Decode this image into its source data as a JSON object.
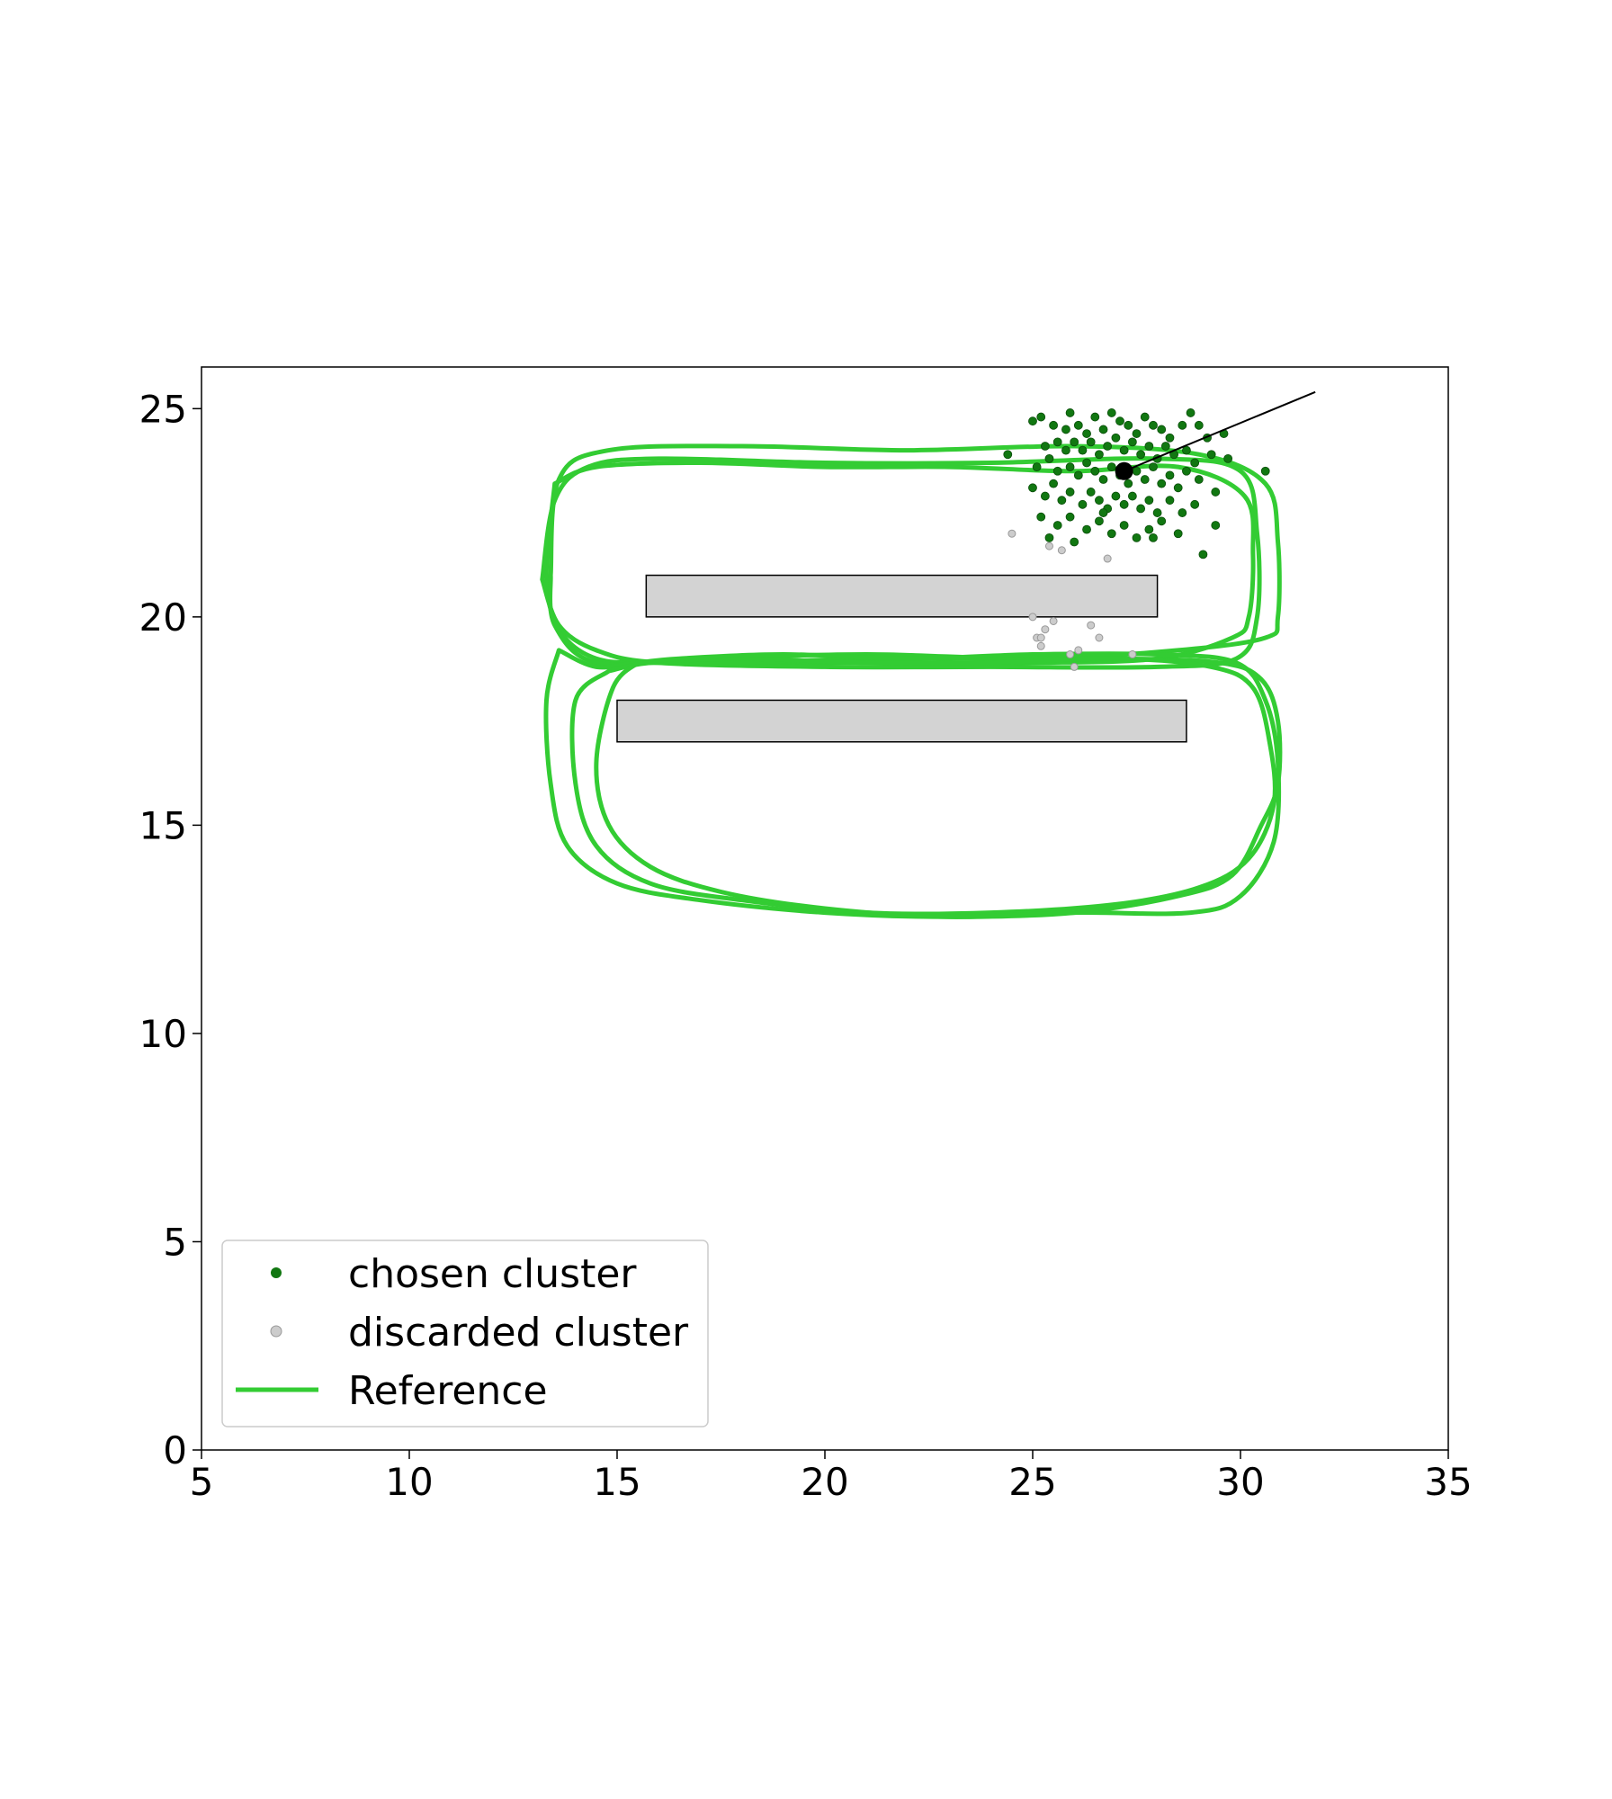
{
  "chart_data": {
    "type": "scatter",
    "title": "",
    "xlabel": "",
    "ylabel": "",
    "xlim": [
      5,
      35
    ],
    "ylim": [
      0,
      26
    ],
    "xticks": [
      "5",
      "10",
      "15",
      "20",
      "25",
      "30",
      "35"
    ],
    "yticks": [
      "0",
      "5",
      "10",
      "15",
      "20",
      "25"
    ],
    "grid": false,
    "legend_position": "bottom-left",
    "legend": {
      "chosen_label": "chosen cluster",
      "discarded_label": "discarded cluster",
      "reference_label": "Reference"
    },
    "colors": {
      "reference": "#33cc33",
      "chosen": "#117711",
      "discarded": "#cccccc",
      "obstacle": "#d3d3d3",
      "estimate": "#000000"
    },
    "obstacles": [
      {
        "x0": 15.7,
        "x1": 28.0,
        "y0": 20.0,
        "y1": 21.0
      },
      {
        "x0": 15.0,
        "x1": 28.7,
        "y0": 17.0,
        "y1": 18.0
      }
    ],
    "estimate": {
      "x": 27.2,
      "y": 23.5,
      "heading_to": [
        31.8,
        25.4
      ]
    },
    "reference_loops": [
      [
        [
          13.5,
          23.2
        ],
        [
          14.5,
          23.6
        ],
        [
          17,
          23.7
        ],
        [
          20,
          23.6
        ],
        [
          23,
          23.6
        ],
        [
          26,
          23.5
        ],
        [
          28.5,
          23.6
        ],
        [
          30.1,
          22.9
        ],
        [
          30.3,
          21.5
        ],
        [
          30.2,
          20
        ],
        [
          29.8,
          19.5
        ],
        [
          28,
          19.0
        ],
        [
          25,
          18.9
        ],
        [
          22,
          18.9
        ],
        [
          19,
          18.9
        ],
        [
          16,
          18.9
        ],
        [
          14.5,
          19.0
        ],
        [
          13.6,
          19.7
        ],
        [
          13.3,
          21
        ],
        [
          13.5,
          23.2
        ]
      ],
      [
        [
          13.2,
          20.9
        ],
        [
          13.5,
          22.8
        ],
        [
          14.3,
          23.6
        ],
        [
          16,
          23.8
        ],
        [
          20,
          23.7
        ],
        [
          24,
          23.7
        ],
        [
          28,
          23.8
        ],
        [
          30,
          23.5
        ],
        [
          30.4,
          22
        ],
        [
          30.4,
          20
        ],
        [
          29.9,
          19
        ],
        [
          28,
          18.8
        ],
        [
          24,
          18.8
        ],
        [
          20,
          18.8
        ],
        [
          16,
          18.9
        ],
        [
          14.5,
          19.2
        ],
        [
          13.6,
          19.8
        ],
        [
          13.2,
          20.9
        ]
      ],
      [
        [
          13.4,
          21
        ],
        [
          13.6,
          23.3
        ],
        [
          14.8,
          24.0
        ],
        [
          18,
          24.1
        ],
        [
          22,
          24.0
        ],
        [
          26,
          24.1
        ],
        [
          29,
          23.9
        ],
        [
          30.6,
          23.2
        ],
        [
          30.9,
          21.8
        ],
        [
          30.9,
          20
        ],
        [
          30.6,
          19.5
        ],
        [
          28.5,
          19.2
        ],
        [
          25,
          19.0
        ],
        [
          21,
          19.1
        ],
        [
          17,
          19.0
        ],
        [
          14.5,
          18.9
        ],
        [
          13.5,
          19.8
        ],
        [
          13.4,
          21
        ]
      ],
      [
        [
          13.6,
          19.2
        ],
        [
          13.3,
          18
        ],
        [
          13.4,
          16
        ],
        [
          13.8,
          14.5
        ],
        [
          15,
          13.6
        ],
        [
          17,
          13.2
        ],
        [
          20,
          12.9
        ],
        [
          23,
          12.8
        ],
        [
          26,
          12.9
        ],
        [
          28.5,
          13.3
        ],
        [
          29.8,
          13.8
        ],
        [
          30.5,
          15
        ],
        [
          30.9,
          16
        ],
        [
          30.9,
          17.5
        ],
        [
          30.5,
          18.5
        ],
        [
          29.5,
          18.9
        ],
        [
          27,
          19.0
        ],
        [
          24,
          19.0
        ],
        [
          21,
          19.0
        ],
        [
          18,
          18.9
        ],
        [
          15.6,
          18.9
        ],
        [
          14.5,
          18.8
        ],
        [
          13.6,
          19.2
        ]
      ],
      [
        [
          14.8,
          18.7
        ],
        [
          14.0,
          18
        ],
        [
          14.0,
          16
        ],
        [
          14.5,
          14.5
        ],
        [
          15.8,
          13.6
        ],
        [
          18,
          13.2
        ],
        [
          21,
          12.9
        ],
        [
          24,
          12.9
        ],
        [
          27,
          13.1
        ],
        [
          29.0,
          13.5
        ],
        [
          30.2,
          14.2
        ],
        [
          30.8,
          15.5
        ],
        [
          30.7,
          17
        ],
        [
          30.3,
          18.3
        ],
        [
          29.3,
          18.8
        ],
        [
          27,
          19.0
        ],
        [
          24,
          18.9
        ],
        [
          21,
          18.9
        ],
        [
          18,
          19.0
        ],
        [
          15.8,
          18.9
        ],
        [
          14.8,
          18.7
        ]
      ],
      [
        [
          15.5,
          18.9
        ],
        [
          14.9,
          18.3
        ],
        [
          14.5,
          16.5
        ],
        [
          14.8,
          15
        ],
        [
          15.8,
          14.0
        ],
        [
          17.5,
          13.4
        ],
        [
          20,
          13.0
        ],
        [
          23,
          12.8
        ],
        [
          26,
          12.9
        ],
        [
          28.8,
          12.9
        ],
        [
          30.0,
          13.3
        ],
        [
          30.8,
          14.6
        ],
        [
          30.9,
          16.5
        ],
        [
          30.6,
          18
        ],
        [
          29.9,
          18.9
        ],
        [
          28,
          19.1
        ],
        [
          25,
          19.1
        ],
        [
          22,
          19.0
        ],
        [
          19,
          19.1
        ],
        [
          16.5,
          19.0
        ],
        [
          15.5,
          18.9
        ]
      ]
    ],
    "series": [
      {
        "name": "chosen cluster",
        "points": [
          [
            25.0,
            24.7
          ],
          [
            25.2,
            24.8
          ],
          [
            25.5,
            24.6
          ],
          [
            25.8,
            24.5
          ],
          [
            25.9,
            24.9
          ],
          [
            26.1,
            24.6
          ],
          [
            26.3,
            24.4
          ],
          [
            26.5,
            24.8
          ],
          [
            26.7,
            24.5
          ],
          [
            26.9,
            24.9
          ],
          [
            27.1,
            24.7
          ],
          [
            27.3,
            24.6
          ],
          [
            27.5,
            24.4
          ],
          [
            27.7,
            24.8
          ],
          [
            27.9,
            24.6
          ],
          [
            28.1,
            24.5
          ],
          [
            28.3,
            24.3
          ],
          [
            28.6,
            24.6
          ],
          [
            28.8,
            24.9
          ],
          [
            29.0,
            24.6
          ],
          [
            29.2,
            24.3
          ],
          [
            25.3,
            24.1
          ],
          [
            25.6,
            24.2
          ],
          [
            25.8,
            24.0
          ],
          [
            26.0,
            24.2
          ],
          [
            26.2,
            24.0
          ],
          [
            26.4,
            24.2
          ],
          [
            26.6,
            23.9
          ],
          [
            26.8,
            24.1
          ],
          [
            27.0,
            24.3
          ],
          [
            27.2,
            24.0
          ],
          [
            27.4,
            24.2
          ],
          [
            27.6,
            23.9
          ],
          [
            27.8,
            24.1
          ],
          [
            28.0,
            23.8
          ],
          [
            28.2,
            24.1
          ],
          [
            28.4,
            23.9
          ],
          [
            28.7,
            24.0
          ],
          [
            28.9,
            23.7
          ],
          [
            29.3,
            23.9
          ],
          [
            24.4,
            23.9
          ],
          [
            25.1,
            23.6
          ],
          [
            25.4,
            23.8
          ],
          [
            25.6,
            23.5
          ],
          [
            25.9,
            23.6
          ],
          [
            26.1,
            23.4
          ],
          [
            26.3,
            23.7
          ],
          [
            26.5,
            23.5
          ],
          [
            26.7,
            23.3
          ],
          [
            26.9,
            23.6
          ],
          [
            27.1,
            23.4
          ],
          [
            27.3,
            23.2
          ],
          [
            27.5,
            23.5
          ],
          [
            27.7,
            23.3
          ],
          [
            27.9,
            23.6
          ],
          [
            28.1,
            23.2
          ],
          [
            28.3,
            23.4
          ],
          [
            28.5,
            23.1
          ],
          [
            28.7,
            23.5
          ],
          [
            29.0,
            23.3
          ],
          [
            29.4,
            23.0
          ],
          [
            30.6,
            23.5
          ],
          [
            25.0,
            23.1
          ],
          [
            25.3,
            22.9
          ],
          [
            25.5,
            23.2
          ],
          [
            25.7,
            22.8
          ],
          [
            25.9,
            23.0
          ],
          [
            26.2,
            22.7
          ],
          [
            26.4,
            23.0
          ],
          [
            26.6,
            22.8
          ],
          [
            26.8,
            22.6
          ],
          [
            27.0,
            22.9
          ],
          [
            27.2,
            22.7
          ],
          [
            27.4,
            22.9
          ],
          [
            27.6,
            22.6
          ],
          [
            27.8,
            22.8
          ],
          [
            28.0,
            22.5
          ],
          [
            28.3,
            22.8
          ],
          [
            28.6,
            22.5
          ],
          [
            28.9,
            22.7
          ],
          [
            25.2,
            22.4
          ],
          [
            25.6,
            22.2
          ],
          [
            25.9,
            22.4
          ],
          [
            26.3,
            22.1
          ],
          [
            26.6,
            22.3
          ],
          [
            26.9,
            22.0
          ],
          [
            27.2,
            22.2
          ],
          [
            27.5,
            21.9
          ],
          [
            27.8,
            22.1
          ],
          [
            28.1,
            22.3
          ],
          [
            28.5,
            22.0
          ],
          [
            29.1,
            21.5
          ],
          [
            29.4,
            22.2
          ],
          [
            25.4,
            21.9
          ],
          [
            26.0,
            21.8
          ],
          [
            26.7,
            22.5
          ],
          [
            27.9,
            21.9
          ],
          [
            29.6,
            24.4
          ],
          [
            29.7,
            23.8
          ]
        ]
      },
      {
        "name": "discarded cluster",
        "points": [
          [
            24.5,
            22.0
          ],
          [
            25.4,
            21.7
          ],
          [
            25.7,
            21.6
          ],
          [
            26.8,
            21.4
          ],
          [
            25.0,
            20.0
          ],
          [
            25.5,
            19.9
          ],
          [
            25.3,
            19.7
          ],
          [
            26.4,
            19.8
          ],
          [
            25.1,
            19.5
          ],
          [
            25.2,
            19.5
          ],
          [
            26.6,
            19.5
          ],
          [
            25.2,
            19.3
          ],
          [
            26.1,
            19.2
          ],
          [
            25.9,
            19.1
          ],
          [
            27.4,
            19.1
          ],
          [
            26.0,
            18.8
          ]
        ]
      }
    ]
  }
}
